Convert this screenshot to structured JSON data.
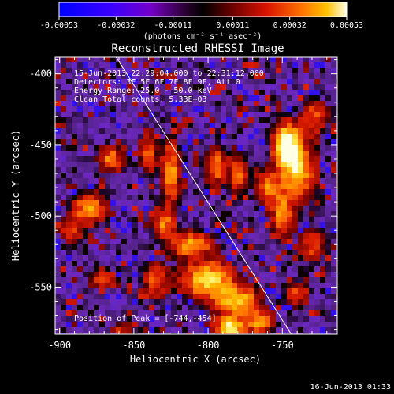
{
  "chart_data": {
    "type": "heatmap",
    "title": "Reconstructed RHESSI Image",
    "xlabel": "Heliocentric X (arcsec)",
    "ylabel": "Heliocentric Y (arcsec)",
    "xlim": [
      -903,
      -713
    ],
    "ylim": [
      -583,
      -388
    ],
    "xticks": [
      -900,
      -850,
      -800,
      -750
    ],
    "xtick_labels": [
      "-900",
      "-850",
      "-800",
      "-750"
    ],
    "yticks": [
      -400,
      -450,
      -500,
      -550
    ],
    "ytick_labels": [
      "-400",
      "-450",
      "-500",
      "-550"
    ],
    "colorbar": {
      "min": -0.00053,
      "max": 0.00053,
      "ticks": [
        -0.00053,
        -0.00032,
        -0.00011,
        0.00011,
        0.00032,
        0.00053
      ],
      "tick_labels": [
        "-0.00053",
        "-0.00032",
        "-0.00011",
        "0.00011",
        "0.00032",
        "0.00053"
      ],
      "unit_label": "(photons cm⁻² s⁻¹ asec⁻²)",
      "colors": [
        "#0000ff",
        "#6a00ff",
        "#2a0033",
        "#000000",
        "#7a0000",
        "#ff2200",
        "#ff9900",
        "#ffffdd"
      ]
    },
    "annotations": {
      "time_range": "15-Jun-2013 22:29:04.000 to 22:31:12.000",
      "detectors": "Detectors: 3F 5F 6F 7F 8F 9F, Att 0",
      "energy_range": "Energy Range: 25.0 - 50.0 keV",
      "method": "Clean     Total counts: 5.33E+03",
      "peak": "Position of Peak = [-744,-454]"
    },
    "limb_line": {
      "x": [
        -862,
        -744
      ],
      "y": [
        -388,
        -583
      ]
    },
    "emission_sources": [
      {
        "x": -747,
        "y": -450,
        "peak": 1.0,
        "sx": 6,
        "sy": 10
      },
      {
        "x": -740,
        "y": -468,
        "peak": 0.75,
        "sx": 8,
        "sy": 14
      },
      {
        "x": -760,
        "y": -480,
        "peak": 0.55,
        "sx": 6,
        "sy": 8
      },
      {
        "x": -750,
        "y": -500,
        "peak": 0.6,
        "sx": 5,
        "sy": 10
      },
      {
        "x": -728,
        "y": -430,
        "peak": 0.45,
        "sx": 6,
        "sy": 8
      },
      {
        "x": -730,
        "y": -520,
        "peak": 0.45,
        "sx": 6,
        "sy": 8
      },
      {
        "x": -880,
        "y": -495,
        "peak": 0.7,
        "sx": 7,
        "sy": 7
      },
      {
        "x": -892,
        "y": -510,
        "peak": 0.45,
        "sx": 5,
        "sy": 6
      },
      {
        "x": -865,
        "y": -460,
        "peak": 0.55,
        "sx": 6,
        "sy": 6
      },
      {
        "x": -840,
        "y": -455,
        "peak": 0.45,
        "sx": 4,
        "sy": 10
      },
      {
        "x": -825,
        "y": -470,
        "peak": 0.65,
        "sx": 4,
        "sy": 15
      },
      {
        "x": -830,
        "y": -505,
        "peak": 0.55,
        "sx": 5,
        "sy": 6
      },
      {
        "x": -795,
        "y": -465,
        "peak": 0.55,
        "sx": 5,
        "sy": 9
      },
      {
        "x": -780,
        "y": -470,
        "peak": 0.5,
        "sx": 4,
        "sy": 9
      },
      {
        "x": -812,
        "y": -520,
        "peak": 0.65,
        "sx": 10,
        "sy": 6
      },
      {
        "x": -800,
        "y": -545,
        "peak": 0.8,
        "sx": 12,
        "sy": 9
      },
      {
        "x": -780,
        "y": -560,
        "peak": 0.75,
        "sx": 10,
        "sy": 7
      },
      {
        "x": -785,
        "y": -578,
        "peak": 0.9,
        "sx": 7,
        "sy": 5
      },
      {
        "x": -765,
        "y": -575,
        "peak": 0.7,
        "sx": 6,
        "sy": 5
      },
      {
        "x": -835,
        "y": -545,
        "peak": 0.45,
        "sx": 6,
        "sy": 8
      },
      {
        "x": -870,
        "y": -545,
        "peak": 0.4,
        "sx": 7,
        "sy": 5
      },
      {
        "x": -858,
        "y": -580,
        "peak": 0.35,
        "sx": 5,
        "sy": 4
      },
      {
        "x": -740,
        "y": -555,
        "peak": 0.45,
        "sx": 5,
        "sy": 6
      }
    ],
    "grid": false
  },
  "footer": {
    "timestamp": "16-Jun-2013 01:33"
  }
}
